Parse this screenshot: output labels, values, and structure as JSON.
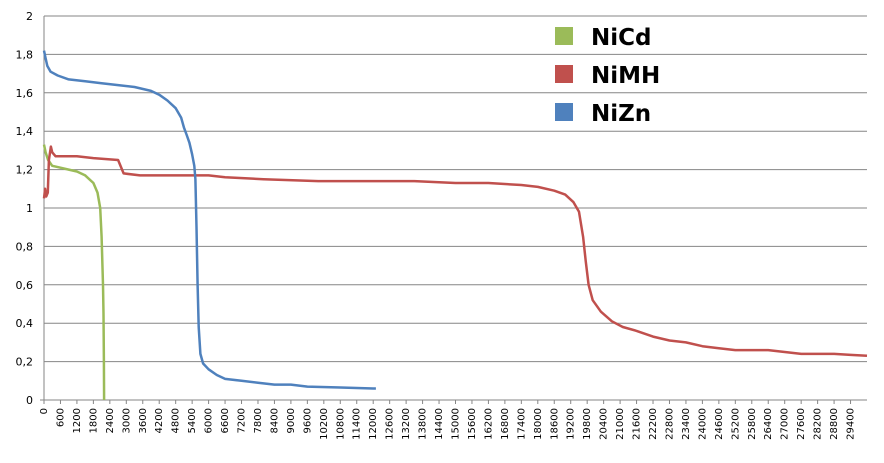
{
  "chart_data": {
    "type": "line",
    "title": "",
    "xlabel": "",
    "ylabel": "",
    "xlim": [
      0,
      30000
    ],
    "ylim": [
      0,
      2
    ],
    "grid": true,
    "legend_position": "top-right",
    "y_ticks": [
      "0",
      "0,2",
      "0,4",
      "0,6",
      "0,8",
      "1",
      "1,2",
      "1,4",
      "1,6",
      "1,8",
      "2"
    ],
    "x_ticks": [
      "0",
      "600",
      "1200",
      "1800",
      "2400",
      "3000",
      "3600",
      "4200",
      "4800",
      "5400",
      "6000",
      "6600",
      "7200",
      "7800",
      "8400",
      "9000",
      "9600",
      "10200",
      "10800",
      "11400",
      "12000",
      "12600",
      "13200",
      "13800",
      "14400",
      "15000",
      "15600",
      "16200",
      "16800",
      "17400",
      "18000",
      "18600",
      "19200",
      "19800",
      "20400",
      "21000",
      "21600",
      "22200",
      "22800",
      "23400",
      "24000",
      "24600",
      "25200",
      "25800",
      "26400",
      "27000",
      "27600",
      "28200",
      "28800",
      "29400"
    ],
    "series": [
      {
        "name": "NiCd",
        "color": "#9bbb59",
        "points": [
          [
            0,
            1.33
          ],
          [
            60,
            1.29
          ],
          [
            150,
            1.25
          ],
          [
            300,
            1.22
          ],
          [
            600,
            1.21
          ],
          [
            900,
            1.2
          ],
          [
            1200,
            1.19
          ],
          [
            1500,
            1.17
          ],
          [
            1800,
            1.13
          ],
          [
            1950,
            1.08
          ],
          [
            2050,
            1.0
          ],
          [
            2100,
            0.85
          ],
          [
            2150,
            0.6
          ],
          [
            2170,
            0.45
          ],
          [
            2185,
            0.2
          ],
          [
            2190,
            0
          ]
        ]
      },
      {
        "name": "NiMH",
        "color": "#c0504d",
        "points": [
          [
            0,
            1.05
          ],
          [
            40,
            1.1
          ],
          [
            80,
            1.06
          ],
          [
            140,
            1.08
          ],
          [
            180,
            1.25
          ],
          [
            250,
            1.32
          ],
          [
            300,
            1.29
          ],
          [
            420,
            1.27
          ],
          [
            1200,
            1.27
          ],
          [
            1800,
            1.26
          ],
          [
            2700,
            1.25
          ],
          [
            2900,
            1.18
          ],
          [
            3500,
            1.17
          ],
          [
            4000,
            1.17
          ],
          [
            4800,
            1.17
          ],
          [
            5400,
            1.17
          ],
          [
            6000,
            1.17
          ],
          [
            6600,
            1.16
          ],
          [
            8000,
            1.15
          ],
          [
            10000,
            1.14
          ],
          [
            12000,
            1.14
          ],
          [
            13500,
            1.14
          ],
          [
            15000,
            1.13
          ],
          [
            16200,
            1.13
          ],
          [
            17400,
            1.12
          ],
          [
            18000,
            1.11
          ],
          [
            18600,
            1.09
          ],
          [
            19000,
            1.07
          ],
          [
            19300,
            1.03
          ],
          [
            19500,
            0.98
          ],
          [
            19650,
            0.85
          ],
          [
            19750,
            0.72
          ],
          [
            19850,
            0.6
          ],
          [
            20000,
            0.52
          ],
          [
            20300,
            0.46
          ],
          [
            20700,
            0.41
          ],
          [
            21100,
            0.38
          ],
          [
            21600,
            0.36
          ],
          [
            22200,
            0.33
          ],
          [
            22800,
            0.31
          ],
          [
            23400,
            0.3
          ],
          [
            24000,
            0.28
          ],
          [
            24600,
            0.27
          ],
          [
            25200,
            0.26
          ],
          [
            26400,
            0.26
          ],
          [
            27000,
            0.25
          ],
          [
            27600,
            0.24
          ],
          [
            28800,
            0.24
          ],
          [
            29400,
            0.235
          ],
          [
            30000,
            0.23
          ]
        ]
      },
      {
        "name": "NiZn",
        "color": "#4f81bd",
        "points": [
          [
            0,
            1.82
          ],
          [
            60,
            1.78
          ],
          [
            120,
            1.74
          ],
          [
            240,
            1.71
          ],
          [
            500,
            1.69
          ],
          [
            900,
            1.67
          ],
          [
            1500,
            1.66
          ],
          [
            2100,
            1.65
          ],
          [
            2700,
            1.64
          ],
          [
            3300,
            1.63
          ],
          [
            3900,
            1.61
          ],
          [
            4200,
            1.59
          ],
          [
            4500,
            1.56
          ],
          [
            4800,
            1.52
          ],
          [
            5000,
            1.47
          ],
          [
            5100,
            1.42
          ],
          [
            5200,
            1.38
          ],
          [
            5300,
            1.34
          ],
          [
            5400,
            1.28
          ],
          [
            5480,
            1.22
          ],
          [
            5520,
            1.15
          ],
          [
            5560,
            0.9
          ],
          [
            5600,
            0.6
          ],
          [
            5640,
            0.38
          ],
          [
            5700,
            0.24
          ],
          [
            5800,
            0.19
          ],
          [
            6000,
            0.16
          ],
          [
            6300,
            0.13
          ],
          [
            6600,
            0.11
          ],
          [
            7200,
            0.1
          ],
          [
            7800,
            0.09
          ],
          [
            8400,
            0.08
          ],
          [
            9000,
            0.08
          ],
          [
            9600,
            0.07
          ],
          [
            10800,
            0.065
          ],
          [
            12000,
            0.06
          ],
          [
            12100,
            0.06
          ]
        ]
      }
    ]
  }
}
